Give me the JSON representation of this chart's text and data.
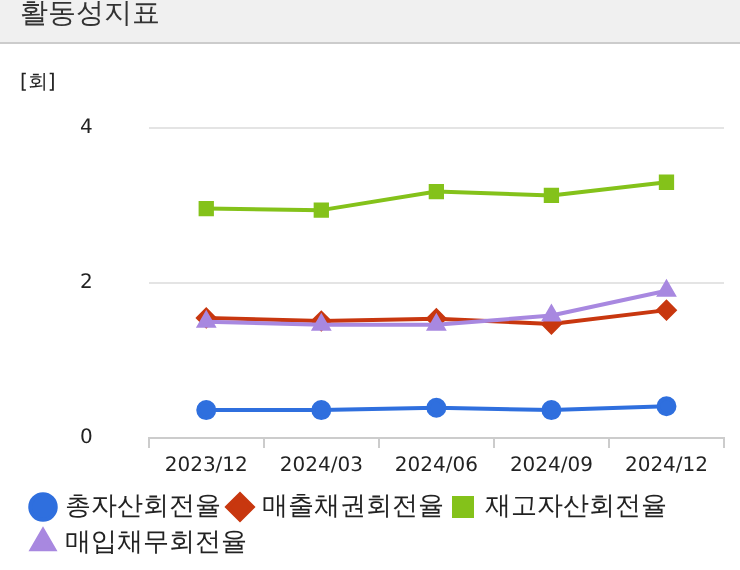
{
  "chart_data": {
    "type": "line",
    "title": "활동성지표",
    "ylabel": "[회]",
    "categories": [
      "2023/12",
      "2024/03",
      "2024/06",
      "2024/09",
      "2024/12"
    ],
    "series": [
      {
        "name": "총자산회전율",
        "color": "#2f6fde",
        "marker": "circle",
        "values": [
          0.36,
          0.36,
          0.39,
          0.36,
          0.41
        ]
      },
      {
        "name": "매출채권회전율",
        "color": "#c8370f",
        "marker": "diamond",
        "values": [
          1.55,
          1.51,
          1.54,
          1.47,
          1.65
        ]
      },
      {
        "name": "재고자산회전율",
        "color": "#84c21a",
        "marker": "square",
        "values": [
          2.96,
          2.94,
          3.18,
          3.13,
          3.3
        ]
      },
      {
        "name": "매입채무회전율",
        "color": "#a888e0",
        "marker": "triangle",
        "values": [
          1.5,
          1.46,
          1.46,
          1.58,
          1.9
        ]
      }
    ],
    "ylim": [
      0,
      4
    ],
    "yticks": [
      0,
      2,
      4
    ],
    "grid": "y",
    "legend": "bottom",
    "line_style": "solid"
  }
}
